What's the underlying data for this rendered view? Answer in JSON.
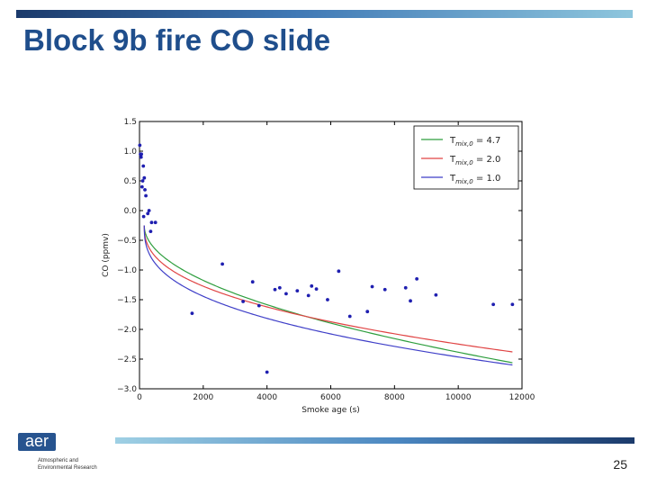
{
  "slide": {
    "title": "Block 9b fire CO slide",
    "page_number": "25",
    "logo": {
      "mark": "aer",
      "line1": "Atmospheric and",
      "line2": "Environmental Research"
    },
    "colors": {
      "title": "#1f4e8c",
      "bar_dark": "#1b3a6b",
      "bar_light": "#8ec6dd"
    }
  },
  "chart_data": {
    "type": "scatter",
    "xlabel": "Smoke age (s)",
    "ylabel": "CO (ppmv)",
    "xlim": [
      0,
      12000
    ],
    "ylim": [
      -3.0,
      1.5
    ],
    "xticks": [
      0,
      2000,
      4000,
      6000,
      8000,
      10000,
      12000
    ],
    "xtick_labels": [
      "0",
      "2000",
      "4000",
      "6000",
      "8000",
      "10000",
      "12000"
    ],
    "yticks": [
      1.5,
      1.0,
      0.5,
      0.0,
      -0.5,
      -1.0,
      -1.5,
      -2.0,
      -2.5,
      -3.0
    ],
    "ytick_labels": [
      "1.5",
      "1.0",
      "0.5",
      "0.0",
      "−0.5",
      "−1.0",
      "−1.5",
      "−2.0",
      "−2.5",
      "−3.0"
    ],
    "grid": false,
    "legend_position": "top-right",
    "points": {
      "color": "#1f1fb0",
      "x": [
        10,
        30,
        50,
        60,
        80,
        100,
        120,
        130,
        150,
        170,
        200,
        260,
        300,
        350,
        380,
        500,
        1650,
        2600,
        3250,
        3550,
        3750,
        4000,
        4250,
        4400,
        4600,
        4950,
        5300,
        5400,
        5550,
        5900,
        6250,
        6600,
        7150,
        7300,
        7700,
        8350,
        8500,
        8700,
        9300,
        11100,
        11700
      ],
      "y": [
        1.1,
        0.95,
        0.9,
        0.95,
        0.4,
        0.5,
        0.75,
        -0.1,
        0.55,
        0.35,
        0.25,
        -0.05,
        0.0,
        -0.35,
        -0.2,
        -0.2,
        -1.73,
        -0.9,
        -1.53,
        -1.2,
        -1.6,
        -2.72,
        -1.33,
        -1.3,
        -1.4,
        -1.35,
        -1.43,
        -1.27,
        -1.32,
        -1.5,
        -1.02,
        -1.78,
        -1.7,
        -1.28,
        -1.33,
        -1.3,
        -1.52,
        -1.15,
        -1.42,
        -1.58,
        -1.58
      ]
    },
    "curves": [
      {
        "label_main": "T",
        "label_sub": "mix,0",
        "label_value": " = 4.7",
        "color": "#2e9e3e",
        "x0": 150,
        "a": -0.25,
        "b": 0.68,
        "p": 0.5
      },
      {
        "label_main": "T",
        "label_sub": "mix,0",
        "label_value": " = 2.0",
        "color": "#e04444",
        "x0": 150,
        "a": -0.25,
        "b": 0.8,
        "p": 0.4
      },
      {
        "label_main": "T",
        "label_sub": "mix,0",
        "label_value": " = 1.0",
        "color": "#3f3fc8",
        "x0": 150,
        "a": -0.25,
        "b": 0.95,
        "p": 0.37
      }
    ]
  }
}
